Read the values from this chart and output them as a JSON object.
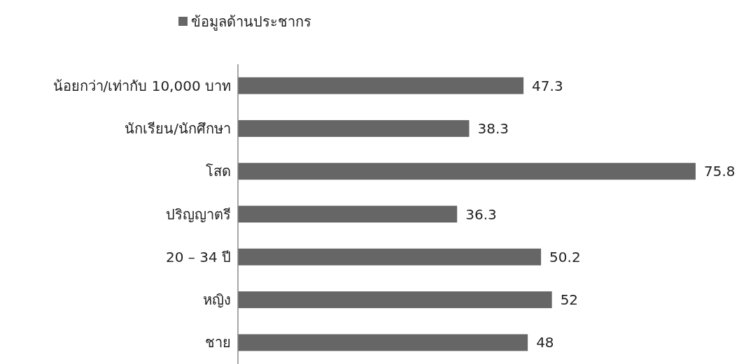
{
  "chart_data": {
    "type": "bar",
    "orientation": "horizontal",
    "legend": "top",
    "data_labels": true,
    "categories": [
      "น้อยกว่า/เท่ากับ 10,000 บาท",
      "นักเรียน/นักศึกษา",
      "โสด",
      "ปริญญาตรี",
      "20 – 34 ปี",
      "หญิง",
      "ชาย"
    ],
    "series": [
      {
        "name": "ข้อมูลด้านประชากร",
        "color": "#666666",
        "values": [
          47.3,
          38.3,
          75.8,
          36.3,
          50.2,
          52,
          48
        ]
      }
    ]
  }
}
